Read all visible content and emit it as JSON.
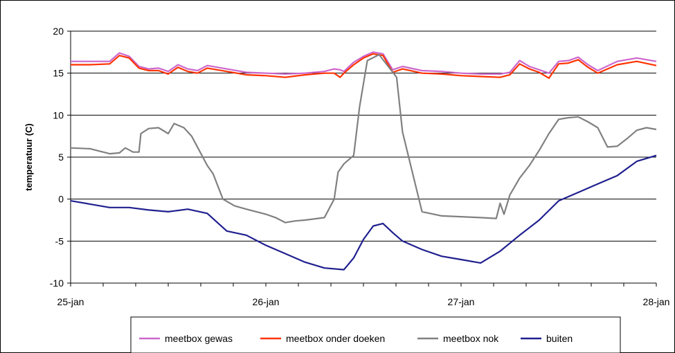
{
  "chart_data": {
    "type": "line",
    "title": "",
    "xlabel": "",
    "ylabel": "temperatuur (C)",
    "ylim": [
      -10,
      20
    ],
    "yticks": [
      -10,
      -5,
      0,
      5,
      10,
      15,
      20
    ],
    "xlim": [
      0,
      3
    ],
    "xticks": [
      {
        "x": 0,
        "label": "25-jan"
      },
      {
        "x": 1,
        "label": "26-jan"
      },
      {
        "x": 2,
        "label": "27-jan"
      },
      {
        "x": 3,
        "label": "28-jan"
      }
    ],
    "minor_ticks_per_day": 6,
    "grid": "horizontal",
    "legend_position": "bottom",
    "series": [
      {
        "name": "meetbox gewas",
        "color": "#cc66cc",
        "x": [
          0,
          0.1,
          0.2,
          0.25,
          0.3,
          0.35,
          0.4,
          0.45,
          0.5,
          0.55,
          0.6,
          0.65,
          0.7,
          0.8,
          0.9,
          1.0,
          1.1,
          1.2,
          1.3,
          1.35,
          1.38,
          1.4,
          1.45,
          1.5,
          1.55,
          1.6,
          1.65,
          1.7,
          1.8,
          1.9,
          2.0,
          2.1,
          2.2,
          2.25,
          2.3,
          2.35,
          2.4,
          2.45,
          2.5,
          2.55,
          2.6,
          2.65,
          2.7,
          2.8,
          2.9,
          3.0
        ],
        "y": [
          16.4,
          16.4,
          16.4,
          17.4,
          17.0,
          15.8,
          15.5,
          15.6,
          15.2,
          16.0,
          15.5,
          15.3,
          15.9,
          15.5,
          15.1,
          15.0,
          14.9,
          15.0,
          15.2,
          15.5,
          15.4,
          15.2,
          16.3,
          17.0,
          17.5,
          17.3,
          15.4,
          15.8,
          15.3,
          15.2,
          15.0,
          14.9,
          14.9,
          15.1,
          16.5,
          15.8,
          15.4,
          15.0,
          16.4,
          16.5,
          16.9,
          16.0,
          15.3,
          16.4,
          16.8,
          16.4
        ]
      },
      {
        "name": "meetbox onder doeken",
        "color": "#ff3300",
        "x": [
          0,
          0.1,
          0.2,
          0.25,
          0.3,
          0.35,
          0.4,
          0.45,
          0.5,
          0.55,
          0.6,
          0.65,
          0.7,
          0.8,
          0.9,
          1.0,
          1.1,
          1.2,
          1.3,
          1.35,
          1.38,
          1.4,
          1.45,
          1.5,
          1.55,
          1.6,
          1.65,
          1.7,
          1.8,
          1.9,
          2.0,
          2.1,
          2.2,
          2.25,
          2.3,
          2.35,
          2.4,
          2.45,
          2.5,
          2.55,
          2.6,
          2.65,
          2.7,
          2.8,
          2.9,
          3.0
        ],
        "y": [
          16.0,
          16.0,
          16.1,
          17.1,
          16.8,
          15.6,
          15.3,
          15.3,
          14.9,
          15.7,
          15.2,
          15.0,
          15.6,
          15.2,
          14.8,
          14.7,
          14.5,
          14.8,
          15.0,
          15.0,
          14.5,
          15.0,
          16.0,
          16.8,
          17.3,
          17.1,
          15.1,
          15.5,
          15.0,
          14.9,
          14.7,
          14.6,
          14.5,
          14.8,
          16.1,
          15.5,
          15.1,
          14.4,
          16.1,
          16.2,
          16.6,
          15.7,
          15.0,
          16.0,
          16.4,
          15.9
        ]
      },
      {
        "name": "meetbox nok",
        "color": "#808080",
        "x": [
          0,
          0.1,
          0.2,
          0.25,
          0.28,
          0.32,
          0.35,
          0.36,
          0.4,
          0.45,
          0.5,
          0.53,
          0.58,
          0.62,
          0.7,
          0.73,
          0.78,
          0.84,
          0.9,
          1.0,
          1.05,
          1.1,
          1.15,
          1.2,
          1.3,
          1.35,
          1.37,
          1.4,
          1.45,
          1.48,
          1.52,
          1.58,
          1.62,
          1.67,
          1.7,
          1.8,
          1.9,
          2.0,
          2.1,
          2.18,
          2.2,
          2.22,
          2.25,
          2.3,
          2.35,
          2.4,
          2.45,
          2.5,
          2.55,
          2.6,
          2.65,
          2.7,
          2.75,
          2.8,
          2.85,
          2.9,
          2.95,
          3.0
        ],
        "y": [
          6.1,
          6.0,
          5.4,
          5.5,
          6.1,
          5.6,
          5.6,
          7.8,
          8.4,
          8.5,
          7.8,
          9.0,
          8.5,
          7.5,
          4.0,
          3.0,
          0.0,
          -0.8,
          -1.2,
          -1.8,
          -2.2,
          -2.8,
          -2.6,
          -2.5,
          -2.2,
          0.0,
          3.2,
          4.2,
          5.2,
          11.0,
          16.5,
          17.2,
          16.0,
          14.5,
          8.0,
          -1.5,
          -2.0,
          -2.1,
          -2.2,
          -2.3,
          -0.5,
          -1.8,
          0.5,
          2.5,
          4.0,
          5.8,
          7.8,
          9.5,
          9.7,
          9.8,
          9.2,
          8.5,
          6.2,
          6.3,
          7.2,
          8.2,
          8.5,
          8.3
        ]
      },
      {
        "name": "buiten",
        "color": "#1f1f8f",
        "x": [
          0,
          0.1,
          0.2,
          0.3,
          0.4,
          0.5,
          0.6,
          0.7,
          0.8,
          0.9,
          1.0,
          1.1,
          1.2,
          1.3,
          1.4,
          1.45,
          1.5,
          1.55,
          1.6,
          1.65,
          1.7,
          1.8,
          1.9,
          2.0,
          2.1,
          2.2,
          2.3,
          2.4,
          2.5,
          2.6,
          2.7,
          2.8,
          2.9,
          3.0
        ],
        "y": [
          -0.2,
          -0.6,
          -1.0,
          -1.0,
          -1.3,
          -1.5,
          -1.2,
          -1.7,
          -3.8,
          -4.3,
          -5.5,
          -6.5,
          -7.5,
          -8.2,
          -8.4,
          -7.0,
          -4.8,
          -3.2,
          -2.9,
          -4.0,
          -5.0,
          -6.0,
          -6.8,
          -7.2,
          -7.6,
          -6.2,
          -4.3,
          -2.5,
          -0.2,
          0.8,
          1.8,
          2.8,
          4.5,
          5.2
        ]
      }
    ]
  }
}
